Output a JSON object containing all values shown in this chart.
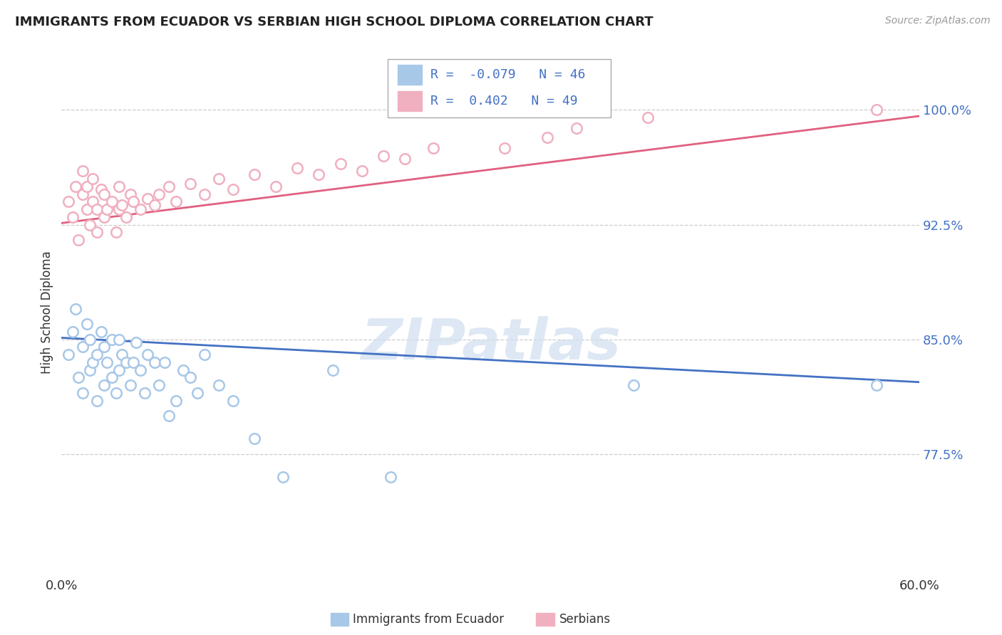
{
  "title": "IMMIGRANTS FROM ECUADOR VS SERBIAN HIGH SCHOOL DIPLOMA CORRELATION CHART",
  "source": "Source: ZipAtlas.com",
  "ylabel": "High School Diploma",
  "ytick_labels": [
    "77.5%",
    "85.0%",
    "92.5%",
    "100.0%"
  ],
  "ytick_values": [
    0.775,
    0.85,
    0.925,
    1.0
  ],
  "xlim": [
    0.0,
    0.6
  ],
  "ylim": [
    0.695,
    1.04
  ],
  "legend_r_blue": "-0.079",
  "legend_n_blue": "46",
  "legend_r_pink": "0.402",
  "legend_n_pink": "49",
  "blue_color": "#a8c8e8",
  "pink_color": "#f0b0c0",
  "line_blue": "#4472c4",
  "line_pink": "#e06080",
  "watermark": "ZIPatlas",
  "blue_scatter_x": [
    0.005,
    0.008,
    0.01,
    0.012,
    0.015,
    0.015,
    0.018,
    0.02,
    0.02,
    0.022,
    0.025,
    0.025,
    0.028,
    0.03,
    0.03,
    0.032,
    0.035,
    0.035,
    0.038,
    0.04,
    0.04,
    0.042,
    0.045,
    0.048,
    0.05,
    0.052,
    0.055,
    0.058,
    0.06,
    0.065,
    0.068,
    0.072,
    0.075,
    0.08,
    0.085,
    0.09,
    0.095,
    0.1,
    0.11,
    0.12,
    0.135,
    0.155,
    0.19,
    0.23,
    0.4,
    0.57
  ],
  "blue_scatter_y": [
    0.84,
    0.855,
    0.87,
    0.825,
    0.815,
    0.845,
    0.86,
    0.83,
    0.85,
    0.835,
    0.81,
    0.84,
    0.855,
    0.82,
    0.845,
    0.835,
    0.825,
    0.85,
    0.815,
    0.83,
    0.85,
    0.84,
    0.835,
    0.82,
    0.835,
    0.848,
    0.83,
    0.815,
    0.84,
    0.835,
    0.82,
    0.835,
    0.8,
    0.81,
    0.83,
    0.825,
    0.815,
    0.84,
    0.82,
    0.81,
    0.785,
    0.76,
    0.83,
    0.76,
    0.82,
    0.82
  ],
  "pink_scatter_x": [
    0.005,
    0.008,
    0.01,
    0.012,
    0.015,
    0.015,
    0.018,
    0.018,
    0.02,
    0.022,
    0.022,
    0.025,
    0.025,
    0.028,
    0.03,
    0.03,
    0.032,
    0.035,
    0.038,
    0.04,
    0.04,
    0.042,
    0.045,
    0.048,
    0.05,
    0.055,
    0.06,
    0.065,
    0.068,
    0.075,
    0.08,
    0.09,
    0.1,
    0.11,
    0.12,
    0.135,
    0.15,
    0.165,
    0.18,
    0.195,
    0.21,
    0.225,
    0.24,
    0.26,
    0.31,
    0.34,
    0.36,
    0.41,
    0.57
  ],
  "pink_scatter_y": [
    0.94,
    0.93,
    0.95,
    0.915,
    0.945,
    0.96,
    0.935,
    0.95,
    0.925,
    0.94,
    0.955,
    0.92,
    0.935,
    0.948,
    0.93,
    0.945,
    0.935,
    0.94,
    0.92,
    0.935,
    0.95,
    0.938,
    0.93,
    0.945,
    0.94,
    0.935,
    0.942,
    0.938,
    0.945,
    0.95,
    0.94,
    0.952,
    0.945,
    0.955,
    0.948,
    0.958,
    0.95,
    0.962,
    0.958,
    0.965,
    0.96,
    0.97,
    0.968,
    0.975,
    0.975,
    0.982,
    0.988,
    0.995,
    1.0
  ],
  "blue_line_x": [
    0.0,
    0.6
  ],
  "blue_line_y": [
    0.851,
    0.822
  ],
  "pink_line_x": [
    0.0,
    0.6
  ],
  "pink_line_y": [
    0.926,
    0.996
  ]
}
